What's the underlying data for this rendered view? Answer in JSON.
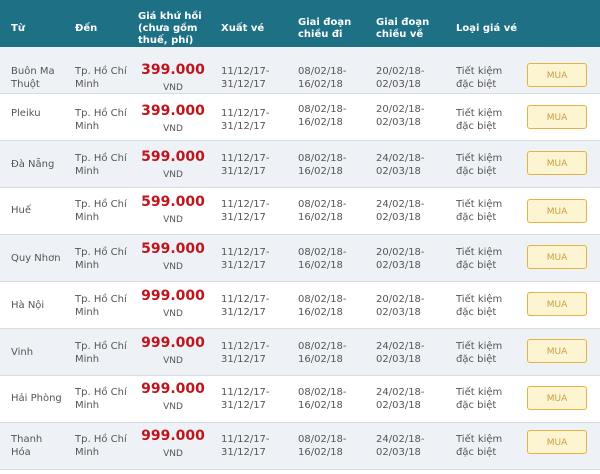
{
  "header": {
    "from": "Từ",
    "to": "Đến",
    "price_line1": "Giá khứ hồi",
    "price_line2": "(chưa gồm",
    "price_line3": "thuế, phí)",
    "issue": "Xuất vé",
    "outbound_line1": "Giai đoạn",
    "outbound_line2": "chiều đi",
    "return_line1": "Giai đoạn",
    "return_line2": "chiều về",
    "fare_type": "Loại giá vé"
  },
  "rows": [
    {
      "from1": "Buôn Ma",
      "from2": "Thuột",
      "to1": "Tp. Hồ Chí",
      "to2": "Minh",
      "price": "399.000",
      "unit": "VND",
      "issue1": "11/12/17-",
      "issue2": "31/12/17",
      "out1": "08/02/18-",
      "out2": "16/02/18",
      "ret1": "20/02/18-",
      "ret2": "02/03/18",
      "type1": "Tiết kiệm",
      "type2": "đặc biệt",
      "button": "MUA"
    },
    {
      "from1": "Pleiku",
      "from2": "",
      "to1": "Tp. Hồ Chí",
      "to2": "Minh",
      "price": "399.000",
      "unit": "VND",
      "issue1": "11/12/17-",
      "issue2": "31/12/17",
      "out1": "08/02/18-",
      "out2": "16/02/18",
      "ret1": "20/02/18-",
      "ret2": "02/03/18",
      "type1": "Tiết kiệm",
      "type2": "đặc biệt",
      "button": "MUA"
    },
    {
      "from1": "Đà Nẵng",
      "from2": "",
      "to1": "Tp. Hồ Chí",
      "to2": "Minh",
      "price": "599.000",
      "unit": "VND",
      "issue1": "11/12/17-",
      "issue2": "31/12/17",
      "out1": "08/02/18-",
      "out2": "16/02/18",
      "ret1": "24/02/18-",
      "ret2": "02/03/18",
      "type1": "Tiết kiệm",
      "type2": "đặc biệt",
      "button": "MUA"
    },
    {
      "from1": "Huế",
      "from2": "",
      "to1": "Tp. Hồ Chí",
      "to2": "Minh",
      "price": "599.000",
      "unit": "VND",
      "issue1": "11/12/17-",
      "issue2": "31/12/17",
      "out1": "08/02/18-",
      "out2": "16/02/18",
      "ret1": "24/02/18-",
      "ret2": "02/03/18",
      "type1": "Tiết kiệm",
      "type2": "đặc biệt",
      "button": "MUA"
    },
    {
      "from1": "Quy Nhơn",
      "from2": "",
      "to1": "Tp. Hồ Chí",
      "to2": "Minh",
      "price": "599.000",
      "unit": "VND",
      "issue1": "11/12/17-",
      "issue2": "31/12/17",
      "out1": "08/02/18-",
      "out2": "16/02/18",
      "ret1": "20/02/18-",
      "ret2": "02/03/18",
      "type1": "Tiết kiệm",
      "type2": "đặc biệt",
      "button": "MUA"
    },
    {
      "from1": "Hà Nội",
      "from2": "",
      "to1": "Tp. Hồ Chí",
      "to2": "Minh",
      "price": "999.000",
      "unit": "VND",
      "issue1": "11/12/17-",
      "issue2": "31/12/17",
      "out1": "08/02/18-",
      "out2": "16/02/18",
      "ret1": "20/02/18-",
      "ret2": "02/03/18",
      "type1": "Tiết kiệm",
      "type2": "đặc biệt",
      "button": "MUA"
    },
    {
      "from1": "Vinh",
      "from2": "",
      "to1": "Tp. Hồ Chí",
      "to2": "Minh",
      "price": "999.000",
      "unit": "VND",
      "issue1": "11/12/17-",
      "issue2": "31/12/17",
      "out1": "08/02/18-",
      "out2": "16/02/18",
      "ret1": "24/02/18-",
      "ret2": "02/03/18",
      "type1": "Tiết kiệm",
      "type2": "đặc biệt",
      "button": "MUA"
    },
    {
      "from1": "Hải Phòng",
      "from2": "",
      "to1": "Tp. Hồ Chí",
      "to2": "Minh",
      "price": "999.000",
      "unit": "VND",
      "issue1": "11/12/17-",
      "issue2": "31/12/17",
      "out1": "08/02/18-",
      "out2": "16/02/18",
      "ret1": "24/02/18-",
      "ret2": "02/03/18",
      "type1": "Tiết kiệm",
      "type2": "đặc biệt",
      "button": "MUA"
    },
    {
      "from1": "Thanh",
      "from2": "Hóa",
      "to1": "Tp. Hồ Chí",
      "to2": "Minh",
      "price": "999.000",
      "unit": "VND",
      "issue1": "11/12/17-",
      "issue2": "31/12/17",
      "out1": "08/02/18-",
      "out2": "16/02/18",
      "ret1": "24/02/18-",
      "ret2": "02/03/18",
      "type1": "Tiết kiệm",
      "type2": "đặc biệt",
      "button": "MUA"
    }
  ]
}
